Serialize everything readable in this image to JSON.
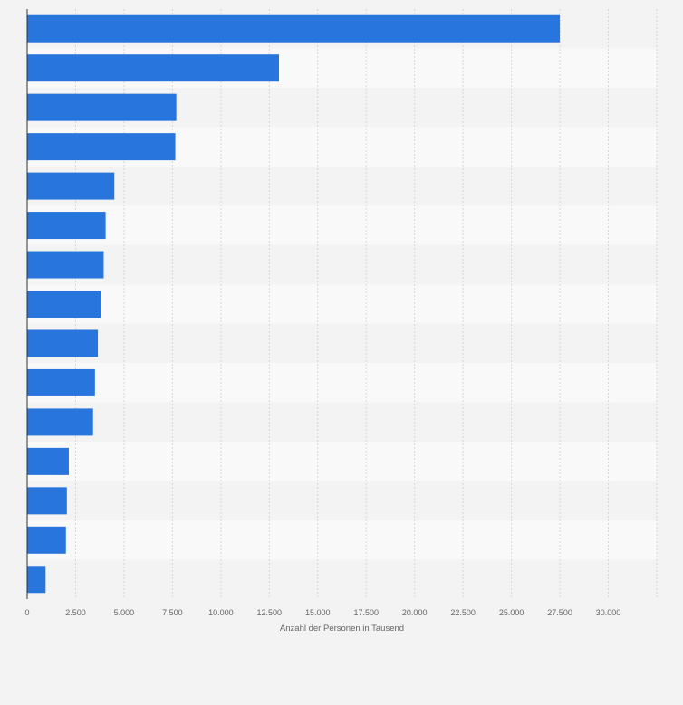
{
  "chart_data": {
    "type": "bar",
    "orientation": "horizontal",
    "title": "",
    "xlabel": "Anzahl der Personen in Tausend",
    "ylabel": "",
    "categories": [
      "",
      "",
      "",
      "",
      "",
      "",
      "",
      "",
      "",
      "",
      "",
      "",
      "",
      "",
      ""
    ],
    "values": [
      27500,
      13000,
      7700,
      7650,
      4500,
      4050,
      3950,
      3800,
      3650,
      3500,
      3400,
      2150,
      2050,
      2000,
      950
    ],
    "xlim": [
      0,
      32500
    ],
    "xticks": [
      0,
      2500,
      5000,
      7500,
      10000,
      12500,
      15000,
      17500,
      20000,
      22500,
      25000,
      27500,
      30000
    ],
    "xtick_labels": [
      "0",
      "2.500",
      "5.000",
      "7.500",
      "10.000",
      "12.500",
      "15.000",
      "17.500",
      "20.000",
      "22.500",
      "25.000",
      "27.500",
      "30.000"
    ],
    "grid": true,
    "legend": "none",
    "colors": {
      "bar": "#2876dd",
      "band_light": "#f9f9f9",
      "band_dark": "#f3f3f3",
      "gridline": "#d6d6d6",
      "axis": "#333333"
    }
  }
}
